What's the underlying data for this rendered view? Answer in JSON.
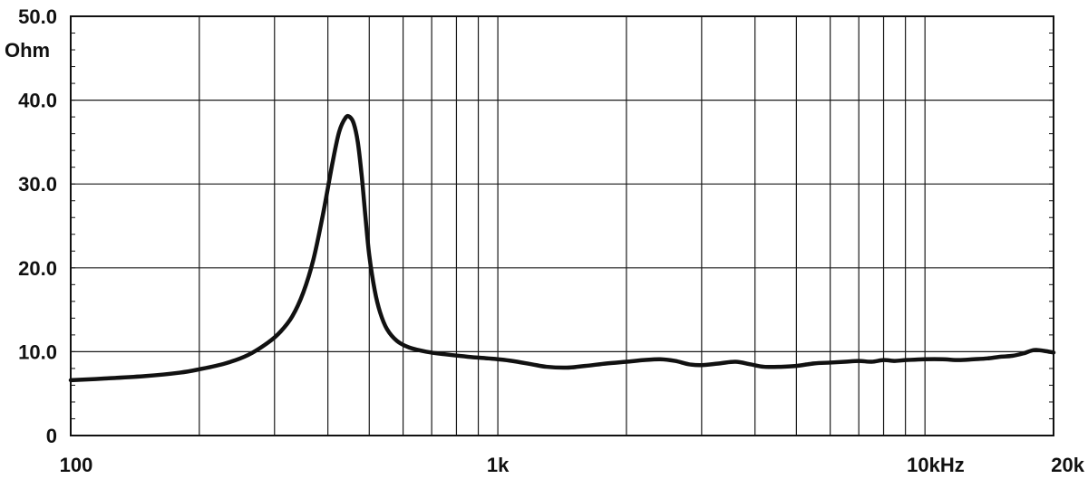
{
  "chart_data": {
    "type": "line",
    "title": "",
    "xlabel": "",
    "ylabel": "Ohm",
    "x_scale": "log",
    "xlim": [
      100,
      20000
    ],
    "ylim": [
      0,
      50
    ],
    "grid": true,
    "x_gridlines": [
      200,
      300,
      400,
      500,
      600,
      700,
      800,
      900,
      1000,
      2000,
      3000,
      4000,
      5000,
      6000,
      7000,
      8000,
      9000,
      10000
    ],
    "x_tick_labels": [
      {
        "value": 100,
        "label": "100"
      },
      {
        "value": 1000,
        "label": "1k"
      },
      {
        "value": 10000,
        "label": "10kHz"
      },
      {
        "value": 20000,
        "label": "20k"
      }
    ],
    "y_tick_labels": [
      {
        "value": 50,
        "label": "50.0"
      },
      {
        "value": 40,
        "label": "40.0"
      },
      {
        "value": 30,
        "label": "30.0"
      },
      {
        "value": 20,
        "label": "20.0"
      },
      {
        "value": 10,
        "label": "10.0"
      },
      {
        "value": 0,
        "label": "0"
      }
    ],
    "unit_label": "Ohm",
    "series": [
      {
        "color": "#111111",
        "x": [
          100,
          120,
          150,
          180,
          200,
          230,
          260,
          290,
          310,
          330,
          350,
          370,
          390,
          410,
          425,
          440,
          450,
          460,
          470,
          480,
          490,
          500,
          515,
          530,
          550,
          580,
          620,
          680,
          750,
          850,
          950,
          1000,
          1080,
          1200,
          1300,
          1450,
          1600,
          1800,
          2000,
          2200,
          2400,
          2600,
          2800,
          3000,
          3300,
          3600,
          3900,
          4200,
          4600,
          5000,
          5500,
          6000,
          6500,
          7000,
          7500,
          8000,
          8500,
          9000,
          10000,
          11000,
          12000,
          13000,
          14000,
          15000,
          16000,
          17000,
          18000,
          19000,
          20000
        ],
        "y": [
          6.6,
          6.8,
          7.1,
          7.5,
          7.9,
          8.6,
          9.6,
          11.1,
          12.4,
          14.2,
          17.0,
          21.0,
          26.5,
          32.5,
          36.2,
          37.9,
          38.0,
          37.2,
          35.0,
          31.0,
          26.0,
          21.5,
          17.3,
          14.7,
          12.7,
          11.3,
          10.5,
          10.0,
          9.7,
          9.4,
          9.2,
          9.1,
          8.9,
          8.5,
          8.2,
          8.1,
          8.3,
          8.6,
          8.8,
          9.0,
          9.1,
          8.9,
          8.5,
          8.4,
          8.6,
          8.8,
          8.5,
          8.2,
          8.2,
          8.3,
          8.6,
          8.7,
          8.8,
          8.9,
          8.8,
          9.0,
          8.9,
          9.0,
          9.1,
          9.1,
          9.0,
          9.1,
          9.2,
          9.4,
          9.5,
          9.8,
          10.2,
          10.1,
          9.9
        ]
      }
    ]
  }
}
